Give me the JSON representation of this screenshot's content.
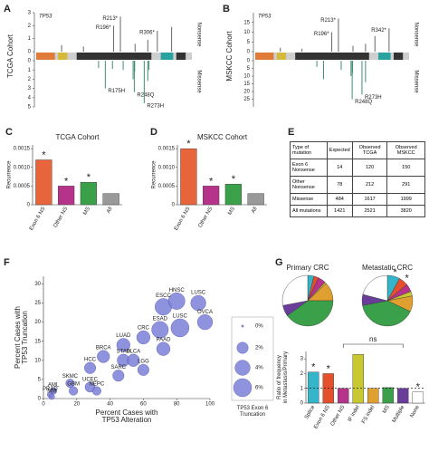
{
  "chart_data": [
    {
      "type": "lollipop",
      "panel": "A",
      "title": "TCGA Cohort",
      "gene": "TP53",
      "xlim": [
        1,
        393
      ],
      "ylim": [
        0,
        3
      ],
      "yticks": [
        0,
        1,
        2,
        3
      ],
      "y2lim": [
        0,
        5
      ],
      "y2ticks": [
        0,
        1,
        2,
        3,
        4,
        5
      ],
      "series": [
        {
          "name": "Nonsense",
          "color": "#666666",
          "x": [
            65,
            120,
            196,
            213,
            250,
            282,
            306,
            342
          ],
          "values": [
            0.5,
            0.4,
            2.0,
            2.7,
            0.6,
            0.9,
            1.6,
            1.9
          ],
          "point_labels": [
            null,
            null,
            "R196*",
            "R213*",
            null,
            null,
            "R306*",
            null
          ]
        },
        {
          "name": "Missense",
          "axis": "y2",
          "color": "#3f8f72",
          "x": [
            158,
            175,
            193,
            220,
            245,
            248,
            249,
            273,
            282,
            285
          ],
          "values": [
            0.8,
            3.0,
            0.9,
            1.0,
            2.0,
            3.4,
            1.2,
            4.6,
            2.2,
            1.0
          ],
          "point_labels": [
            null,
            "R175H",
            null,
            null,
            null,
            "R248Q",
            null,
            "R273H",
            null,
            null
          ]
        }
      ]
    },
    {
      "type": "lollipop",
      "panel": "B",
      "title": "MSKCC Cohort",
      "gene": "TP53",
      "xlim": [
        1,
        393
      ],
      "ylim": [
        0,
        20
      ],
      "yticks": [
        0,
        5,
        10,
        15
      ],
      "y2lim": [
        0,
        30
      ],
      "y2ticks": [
        0,
        5,
        10,
        15,
        20,
        25
      ],
      "series": [
        {
          "name": "Nonsense",
          "color": "#666666",
          "x": [
            65,
            120,
            196,
            213,
            250,
            282,
            306,
            342
          ],
          "values": [
            2,
            1.5,
            10,
            17,
            3,
            4,
            8,
            12
          ],
          "point_labels": [
            null,
            null,
            "R196*",
            "R213*",
            null,
            null,
            null,
            "R342*"
          ]
        },
        {
          "name": "Missense",
          "axis": "y2",
          "color": "#3f8f72",
          "x": [
            158,
            175,
            220,
            245,
            248,
            249,
            273,
            282
          ],
          "values": [
            4,
            12,
            6,
            10,
            25,
            8,
            22,
            14
          ],
          "point_labels": [
            null,
            null,
            null,
            null,
            "R248Q",
            null,
            "R273H",
            null
          ]
        }
      ]
    },
    {
      "type": "bar",
      "panel": "C",
      "title": "TCGA Cohort",
      "ylabel": "Recurrence",
      "categories": [
        "Exon 6 NS",
        "Other NS",
        "MS",
        "All"
      ],
      "colors": [
        "#e8643a",
        "#b5338a",
        "#3aa04a",
        "#999999"
      ],
      "values": [
        0.0012,
        0.0005,
        0.0006,
        0.0003
      ],
      "markers": [
        "*",
        "*",
        "*",
        null
      ],
      "ylim": [
        0,
        0.0016
      ],
      "yticks": [
        0,
        0.0005,
        {
          "value": 0.001,
          "label": "0.0010"
        },
        0.0015
      ]
    },
    {
      "type": "bar",
      "panel": "D",
      "title": "MSKCC Cohort",
      "ylabel": "Recurrence",
      "categories": [
        "Exon 6 NS",
        "Other NS",
        "MS",
        "All"
      ],
      "colors": [
        "#e8643a",
        "#b5338a",
        "#3aa04a",
        "#999999"
      ],
      "values": [
        0.0015,
        0.0005,
        0.00055,
        0.0003
      ],
      "markers": [
        "*",
        "*",
        "*",
        null
      ],
      "ylim": [
        0,
        0.0016
      ],
      "yticks": [
        0,
        0.0005,
        {
          "value": 0.001,
          "label": "0.0010"
        },
        0.0015
      ]
    },
    {
      "type": "scatter",
      "panel": "F",
      "xlabel": [
        "Percent Cases with",
        "TP53 Alteration"
      ],
      "ylabel": [
        "Percent Cases with",
        "TP53 Truncation"
      ],
      "xlim": [
        0,
        100
      ],
      "xticks": [
        0,
        20,
        40,
        60,
        80,
        100
      ],
      "ylim": [
        0,
        32
      ],
      "yticks": [
        0,
        5,
        10,
        15,
        20,
        25,
        30
      ],
      "color": "#7b7fd6",
      "point_labels": [
        "ESCC",
        "HNSC",
        "LUSC",
        "OVCA",
        "ESAD",
        "LUSC",
        "CRC",
        "PAAD",
        "LUAD",
        "BRCA",
        "STAD",
        "BLCA",
        "HCC",
        "LGG",
        "SARC",
        "SKMC",
        "UCEC",
        "GBM",
        "NEPC",
        "AML",
        "PRAD",
        "MM"
      ],
      "x": [
        72,
        80,
        93,
        97,
        70,
        82,
        60,
        72,
        48,
        36,
        48,
        54,
        28,
        60,
        45,
        16,
        28,
        18,
        32,
        6,
        4,
        5
      ],
      "values": [
        24,
        25.5,
        25,
        20,
        18,
        18.5,
        16,
        13,
        14,
        11,
        10,
        10,
        8,
        7.5,
        6,
        4,
        3,
        2,
        2,
        2,
        1,
        0.5
      ],
      "sizes": [
        5,
        5,
        4,
        4,
        5,
        6,
        3,
        3,
        3,
        2.5,
        2.5,
        2.5,
        2,
        2,
        2,
        1,
        1.5,
        1,
        1,
        0.5,
        0.3,
        0.3
      ],
      "size_legend": {
        "title": [
          "TP53 Exon 6",
          "Truncation"
        ],
        "values": [
          {
            "value": 0,
            "label": "0%"
          },
          {
            "value": 2,
            "label": "2%"
          },
          {
            "value": 4,
            "label": "4%"
          },
          {
            "value": 6,
            "label": "6%"
          }
        ]
      }
    },
    {
      "type": "pie",
      "panel": "G",
      "colors": [
        "#35b5c9",
        "#e3502b",
        "#b5338a",
        "#c8c832",
        "#e0a030",
        "#3aa04a",
        "#6a3d9a",
        "#ffffff"
      ],
      "series": [
        {
          "name": "Primary CRC",
          "values": [
            4,
            3,
            5,
            1,
            12,
            40,
            7,
            28
          ]
        },
        {
          "name": "Metastatic CRC",
          "values": [
            8,
            6,
            5,
            3,
            10,
            40,
            7,
            21
          ],
          "markers": [
            "*",
            "*",
            null,
            null,
            null,
            null,
            null,
            null
          ]
        }
      ]
    },
    {
      "type": "bar",
      "ylabel": [
        "Ratio of frequency",
        "in Metastasis/Primary"
      ],
      "categories": [
        "Splice",
        "Exon 6 NS",
        "Other NS",
        "IF indel",
        "FS indel",
        "MS",
        "Multiple",
        "None"
      ],
      "colors": [
        "#35b5c9",
        "#e3502b",
        "#b5338a",
        "#c8c832",
        "#e0a030",
        "#3aa04a",
        "#6a3d9a",
        "#ffffff"
      ],
      "values": [
        2.1,
        2.0,
        1.0,
        3.3,
        1.0,
        1.05,
        1.0,
        0.75
      ],
      "markers": [
        "*",
        "*",
        null,
        null,
        null,
        null,
        null,
        "*"
      ],
      "ylim": [
        0,
        3.5
      ],
      "yticks": [
        0,
        1,
        2,
        3
      ],
      "reference_line": 1,
      "bracket_label": "ns"
    }
  ],
  "table": {
    "panel": "E",
    "header": [
      "Type of mutation",
      "Expected",
      "Observed TCGA",
      "Observed MSKCC"
    ],
    "rows": [
      [
        "Exon 6 Nonsense",
        14,
        120,
        150
      ],
      [
        "Other Nonsense",
        78,
        212,
        291
      ],
      [
        "Missense",
        484,
        1617,
        1999
      ],
      [
        "All mutations",
        1421,
        2521,
        3820
      ]
    ]
  }
}
